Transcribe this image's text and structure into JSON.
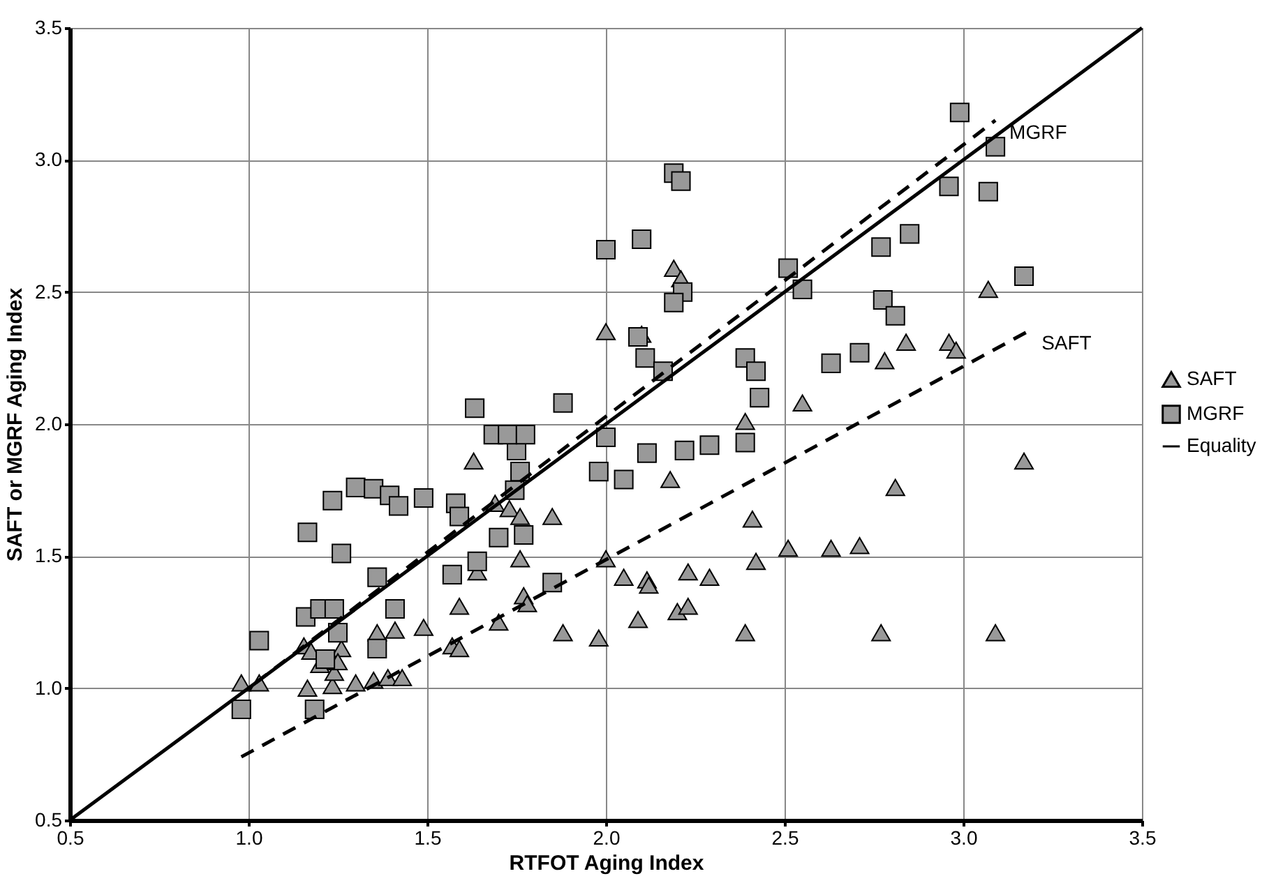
{
  "chart_data": {
    "type": "scatter",
    "xlabel": "RTFOT Aging Index",
    "ylabel": "SAFT or MGRF Aging Index",
    "xlim": [
      0.5,
      3.5
    ],
    "ylim": [
      0.5,
      3.5
    ],
    "xticks": [
      0.5,
      {
        "value": 1,
        "label": "1.0"
      },
      1.5,
      {
        "value": 2,
        "label": "2.0"
      },
      2.5,
      {
        "value": 3,
        "label": "3.0"
      },
      3.5
    ],
    "yticks": [
      0.5,
      {
        "value": 1,
        "label": "1.0"
      },
      1.5,
      {
        "value": 2,
        "label": "2.0"
      },
      2.5,
      {
        "value": 3,
        "label": "3.0"
      },
      3.5
    ],
    "grid": true,
    "legend": "right",
    "series": [
      {
        "name": "SAFT",
        "marker": "triangle",
        "color": "#999999",
        "x": [
          0.98,
          1.03,
          1.155,
          1.165,
          1.175,
          1.2,
          1.235,
          1.24,
          1.26,
          1.25,
          1.3,
          1.35,
          1.36,
          1.39,
          1.41,
          1.43,
          1.49,
          1.57,
          1.59,
          1.59,
          1.63,
          1.64,
          1.69,
          1.7,
          1.73,
          1.76,
          1.76,
          1.77,
          1.78,
          1.85,
          1.88,
          1.98,
          2.0,
          2.05,
          2.09,
          2.115,
          2.12,
          2.0,
          2.1,
          2.18,
          2.23,
          2.29,
          2.2,
          2.23,
          2.39,
          2.41,
          2.42,
          2.51,
          2.63,
          2.71,
          2.77,
          2.81,
          3.09,
          3.17,
          2.19,
          2.21,
          2.39,
          2.55,
          2.78,
          2.84,
          2.96,
          2.98,
          3.07
        ],
        "values": [
          1.02,
          1.02,
          1.16,
          1.0,
          1.14,
          1.09,
          1.01,
          1.06,
          1.15,
          1.1,
          1.02,
          1.03,
          1.21,
          1.04,
          1.22,
          1.04,
          1.23,
          1.16,
          1.15,
          1.31,
          1.86,
          1.44,
          1.7,
          1.25,
          1.68,
          1.65,
          1.49,
          1.35,
          1.32,
          1.65,
          1.21,
          1.19,
          1.49,
          1.42,
          1.26,
          1.41,
          1.39,
          2.35,
          2.34,
          1.79,
          1.44,
          1.42,
          1.29,
          1.31,
          1.21,
          1.64,
          1.48,
          1.53,
          1.53,
          1.54,
          1.21,
          1.76,
          1.21,
          1.86,
          2.59,
          2.55,
          2.01,
          2.08,
          2.24,
          2.31,
          2.31,
          2.28,
          2.51
        ]
      },
      {
        "name": "MGRF",
        "marker": "square",
        "color": "#999999",
        "x": [
          0.98,
          1.03,
          1.165,
          1.16,
          1.2,
          1.24,
          1.235,
          1.26,
          1.3,
          1.35,
          1.395,
          1.42,
          1.49,
          1.36,
          1.41,
          1.25,
          1.215,
          1.36,
          1.185,
          1.58,
          1.59,
          1.57,
          1.64,
          1.7,
          1.77,
          1.745,
          1.76,
          1.75,
          1.85,
          1.98,
          2.05,
          2.115,
          1.633,
          1.685,
          1.725,
          1.775,
          1.88,
          2.0,
          2.1,
          2.09,
          2.11,
          2.0,
          2.19,
          2.21,
          2.215,
          2.19,
          2.16,
          2.39,
          2.42,
          2.43,
          2.39,
          2.22,
          2.29,
          2.51,
          2.55,
          2.63,
          2.71,
          2.77,
          2.85,
          2.775,
          2.81,
          2.96,
          2.99,
          3.09,
          3.07,
          3.17
        ],
        "values": [
          0.92,
          1.18,
          1.59,
          1.27,
          1.3,
          1.3,
          1.71,
          1.51,
          1.76,
          1.755,
          1.73,
          1.69,
          1.72,
          1.42,
          1.3,
          1.21,
          1.11,
          1.15,
          0.92,
          1.7,
          1.65,
          1.43,
          1.48,
          1.57,
          1.58,
          1.75,
          1.82,
          1.9,
          1.4,
          1.82,
          1.79,
          1.89,
          2.06,
          1.96,
          1.96,
          1.96,
          2.08,
          2.66,
          2.7,
          2.33,
          2.25,
          1.95,
          2.95,
          2.92,
          2.5,
          2.46,
          2.2,
          2.25,
          2.2,
          2.1,
          1.93,
          1.9,
          1.92,
          2.59,
          2.51,
          2.23,
          2.27,
          2.67,
          2.72,
          2.47,
          2.41,
          2.9,
          3.18,
          3.05,
          2.88,
          2.56
        ]
      },
      {
        "name": "Equality",
        "type": "line",
        "line_style": "solid",
        "color": "#000000",
        "x": [
          0.5,
          3.5
        ],
        "values": [
          0.5,
          3.5
        ]
      },
      {
        "name": "MGRF",
        "type": "line",
        "line_style": "dashed",
        "color": "#000000",
        "x": [
          1.02,
          3.09
        ],
        "values": [
          1.02,
          3.15
        ]
      },
      {
        "name": "SAFT",
        "type": "line",
        "line_style": "dashed",
        "color": "#000000",
        "x": [
          0.98,
          3.18
        ],
        "values": [
          0.74,
          2.35
        ]
      }
    ]
  }
}
